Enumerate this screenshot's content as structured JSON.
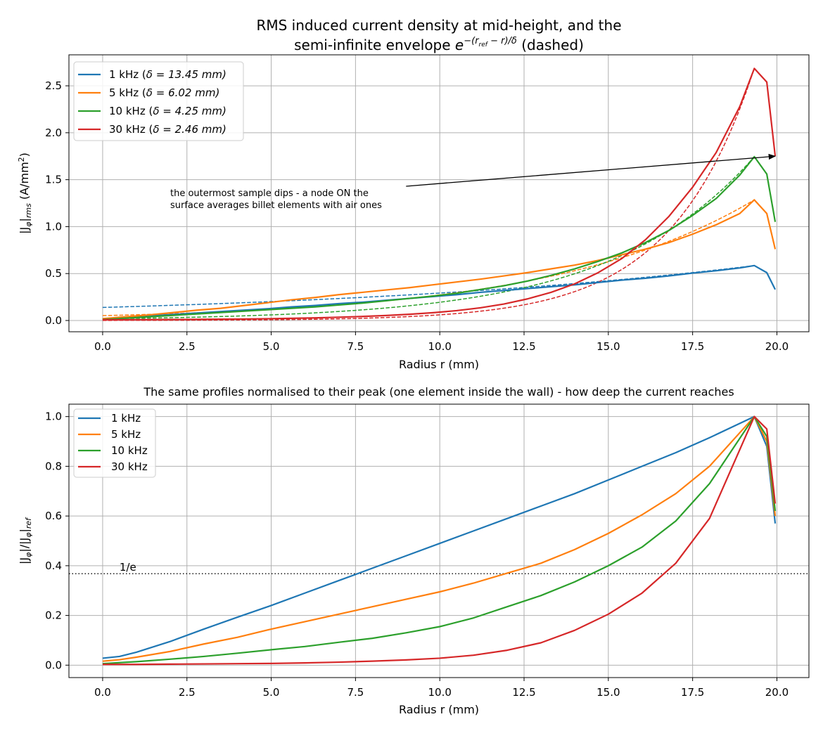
{
  "chart_data": [
    {
      "type": "line",
      "title_line1": "RMS induced current density at mid-height, and the",
      "title_line2_prefix": "semi-infinite envelope ",
      "title_line2_math_base": "e",
      "title_line2_math_exp": "−(r",
      "title_line2_math_exp_sub": "ref",
      "title_line2_math_exp_tail": " − r)/δ",
      "title_line2_suffix": " (dashed)",
      "xlabel": "Radius r (mm)",
      "ylabel_main": "|J",
      "ylabel_sub1": "φ",
      "ylabel_mid": "|",
      "ylabel_sub2": "rms",
      "ylabel_unit": " (A/mm",
      "ylabel_unit_sup": "2",
      "ylabel_close": ")",
      "xlim": [
        -1.0,
        20.95
      ],
      "ylim": [
        -0.12,
        2.83
      ],
      "xticks": [
        0.0,
        2.5,
        5.0,
        7.5,
        10.0,
        12.5,
        15.0,
        17.5,
        20.0
      ],
      "xtick_labels": [
        "0.0",
        "2.5",
        "5.0",
        "7.5",
        "10.0",
        "12.5",
        "15.0",
        "17.5",
        "20.0"
      ],
      "yticks": [
        0.0,
        0.5,
        1.0,
        1.5,
        2.0,
        2.5
      ],
      "ytick_labels": [
        "0.0",
        "0.5",
        "1.0",
        "1.5",
        "2.0",
        "2.5"
      ],
      "grid": true,
      "legend_position": "upper-left",
      "annotation": {
        "text_line1": "the outermost sample dips - a node ON the",
        "text_line2": "surface averages billet elements with air ones",
        "arrow_from": [
          9.0,
          1.43
        ],
        "arrow_to": [
          19.95,
          1.75
        ]
      },
      "series": [
        {
          "name": "1 kHz (δ = 13.45 mm)",
          "legend_prefix": "1 kHz (",
          "legend_delta_text": "δ = 13.45 mm)",
          "color": "#1f77b4",
          "x": [
            0,
            0.7,
            1.4,
            2.1,
            2.8,
            3.5,
            4.2,
            4.9,
            5.6,
            6.3,
            7.0,
            7.7,
            8.4,
            9.1,
            9.8,
            10.5,
            11.2,
            11.9,
            12.6,
            13.3,
            14.0,
            14.7,
            15.4,
            16.1,
            16.8,
            17.5,
            18.2,
            18.9,
            19.33,
            19.7,
            19.95
          ],
          "values": [
            0.016,
            0.03,
            0.05,
            0.065,
            0.08,
            0.095,
            0.11,
            0.125,
            0.145,
            0.16,
            0.18,
            0.195,
            0.215,
            0.235,
            0.255,
            0.275,
            0.3,
            0.32,
            0.34,
            0.36,
            0.38,
            0.405,
            0.43,
            0.45,
            0.475,
            0.505,
            0.53,
            0.56,
            0.585,
            0.51,
            0.33
          ],
          "envelope": {
            "type": "exp",
            "amplitude": 0.585,
            "r_ref": 19.33,
            "delta": 13.45,
            "x_start": 0,
            "x_end": 19.33
          }
        },
        {
          "name": "5 kHz (δ = 6.02 mm)",
          "legend_prefix": "5 kHz (",
          "legend_delta_text": "δ = 6.02 mm)",
          "color": "#ff7f0e",
          "x": [
            0,
            0.7,
            1.4,
            2.1,
            2.8,
            3.5,
            4.2,
            4.9,
            5.6,
            6.3,
            7.0,
            7.7,
            8.4,
            9.1,
            9.8,
            10.5,
            11.2,
            11.9,
            12.6,
            13.3,
            14.0,
            14.7,
            15.4,
            16.1,
            16.8,
            17.5,
            18.2,
            18.9,
            19.33,
            19.7,
            19.95
          ],
          "values": [
            0.02,
            0.04,
            0.06,
            0.085,
            0.11,
            0.13,
            0.16,
            0.19,
            0.22,
            0.245,
            0.275,
            0.3,
            0.325,
            0.35,
            0.38,
            0.41,
            0.44,
            0.475,
            0.51,
            0.55,
            0.59,
            0.64,
            0.7,
            0.76,
            0.83,
            0.92,
            1.02,
            1.14,
            1.285,
            1.14,
            0.76
          ],
          "envelope": {
            "type": "exp",
            "amplitude": 1.285,
            "r_ref": 19.33,
            "delta": 6.02,
            "x_start": 0,
            "x_end": 19.33
          }
        },
        {
          "name": "10 kHz (δ = 4.25 mm)",
          "legend_prefix": "10 kHz (",
          "legend_delta_text": "δ = 4.25 mm)",
          "color": "#2ca02c",
          "x": [
            0,
            0.7,
            1.4,
            2.1,
            2.8,
            3.5,
            4.2,
            4.9,
            5.6,
            6.3,
            7.0,
            7.7,
            8.4,
            9.1,
            9.8,
            10.5,
            11.2,
            11.9,
            12.6,
            13.3,
            14.0,
            14.7,
            15.4,
            16.1,
            16.8,
            17.5,
            18.2,
            18.9,
            19.33,
            19.7,
            19.95
          ],
          "values": [
            0.01,
            0.025,
            0.04,
            0.055,
            0.07,
            0.085,
            0.1,
            0.115,
            0.13,
            0.145,
            0.165,
            0.185,
            0.21,
            0.235,
            0.26,
            0.29,
            0.33,
            0.37,
            0.42,
            0.48,
            0.55,
            0.63,
            0.72,
            0.83,
            0.96,
            1.12,
            1.3,
            1.55,
            1.745,
            1.56,
            1.05
          ],
          "envelope": {
            "type": "exp",
            "amplitude": 1.745,
            "r_ref": 19.33,
            "delta": 4.25,
            "x_start": 0,
            "x_end": 19.33
          }
        },
        {
          "name": "30 kHz (δ = 2.46 mm)",
          "legend_prefix": "30 kHz (",
          "legend_delta_text": "δ = 2.46 mm)",
          "color": "#d62728",
          "x": [
            0,
            0.7,
            1.4,
            2.1,
            2.8,
            3.5,
            4.2,
            4.9,
            5.6,
            6.3,
            7.0,
            7.7,
            8.4,
            9.1,
            9.8,
            10.5,
            11.2,
            11.9,
            12.6,
            13.3,
            14.0,
            14.7,
            15.4,
            16.1,
            16.8,
            17.5,
            18.2,
            18.9,
            19.33,
            19.7,
            19.95
          ],
          "values": [
            0.008,
            0.008,
            0.009,
            0.01,
            0.012,
            0.014,
            0.016,
            0.019,
            0.023,
            0.028,
            0.035,
            0.043,
            0.053,
            0.066,
            0.083,
            0.105,
            0.135,
            0.175,
            0.23,
            0.3,
            0.39,
            0.51,
            0.66,
            0.86,
            1.11,
            1.42,
            1.79,
            2.28,
            2.685,
            2.54,
            1.75
          ],
          "envelope": {
            "type": "exp",
            "amplitude": 2.685,
            "r_ref": 19.33,
            "delta": 2.46,
            "x_start": 0,
            "x_end": 19.33
          }
        }
      ]
    },
    {
      "type": "line",
      "title": "The same profiles normalised to their peak (one element inside the wall) - how deep the current reaches",
      "xlabel": "Radius r (mm)",
      "ylabel_main": "|J",
      "ylabel_sub1": "φ",
      "ylabel_mid": "|/|J",
      "ylabel_sub2": "φ",
      "ylabel_tail": "|",
      "ylabel_sub3": "ref",
      "xlim": [
        -1.0,
        20.95
      ],
      "ylim": [
        -0.05,
        1.05
      ],
      "xticks": [
        0.0,
        2.5,
        5.0,
        7.5,
        10.0,
        12.5,
        15.0,
        17.5,
        20.0
      ],
      "xtick_labels": [
        "0.0",
        "2.5",
        "5.0",
        "7.5",
        "10.0",
        "12.5",
        "15.0",
        "17.5",
        "20.0"
      ],
      "yticks": [
        0.0,
        0.2,
        0.4,
        0.6,
        0.8,
        1.0
      ],
      "ytick_labels": [
        "0.0",
        "0.2",
        "0.4",
        "0.6",
        "0.8",
        "1.0"
      ],
      "grid": true,
      "legend_position": "upper-left",
      "reference_line": {
        "y": 0.368,
        "label": "1/e",
        "label_x": 0.5
      },
      "series": [
        {
          "name": "1 kHz",
          "color": "#1f77b4",
          "x": [
            0,
            0.5,
            1.0,
            2.0,
            3.0,
            4.0,
            5.0,
            6.0,
            7.0,
            8.0,
            9.0,
            10.0,
            11.0,
            12.0,
            13.0,
            14.0,
            15.0,
            16.0,
            17.0,
            18.0,
            19.33,
            19.7,
            19.95
          ],
          "values": [
            0.028,
            0.035,
            0.052,
            0.095,
            0.145,
            0.193,
            0.24,
            0.29,
            0.34,
            0.39,
            0.44,
            0.49,
            0.54,
            0.59,
            0.64,
            0.69,
            0.745,
            0.8,
            0.855,
            0.915,
            1.0,
            0.88,
            0.57
          ]
        },
        {
          "name": "5 kHz",
          "color": "#ff7f0e",
          "x": [
            0,
            0.5,
            1.0,
            2.0,
            3.0,
            4.0,
            5.0,
            6.0,
            7.0,
            8.0,
            9.0,
            10.0,
            11.0,
            12.0,
            13.0,
            14.0,
            15.0,
            16.0,
            17.0,
            18.0,
            19.33,
            19.7,
            19.95
          ],
          "values": [
            0.016,
            0.022,
            0.032,
            0.055,
            0.085,
            0.112,
            0.145,
            0.175,
            0.205,
            0.235,
            0.265,
            0.295,
            0.33,
            0.37,
            0.41,
            0.465,
            0.53,
            0.605,
            0.69,
            0.8,
            1.0,
            0.9,
            0.6
          ]
        },
        {
          "name": "10 kHz",
          "color": "#2ca02c",
          "x": [
            0,
            0.5,
            1.0,
            2.0,
            3.0,
            4.0,
            5.0,
            6.0,
            7.0,
            8.0,
            9.0,
            10.0,
            11.0,
            12.0,
            13.0,
            14.0,
            15.0,
            16.0,
            17.0,
            18.0,
            19.33,
            19.7,
            19.95
          ],
          "values": [
            0.006,
            0.01,
            0.014,
            0.024,
            0.035,
            0.048,
            0.062,
            0.075,
            0.092,
            0.108,
            0.13,
            0.155,
            0.19,
            0.235,
            0.28,
            0.335,
            0.4,
            0.475,
            0.58,
            0.73,
            1.0,
            0.92,
            0.62
          ]
        },
        {
          "name": "30 kHz",
          "color": "#d62728",
          "x": [
            0,
            0.5,
            1.0,
            2.0,
            3.0,
            4.0,
            5.0,
            6.0,
            7.0,
            8.0,
            9.0,
            10.0,
            11.0,
            12.0,
            13.0,
            14.0,
            15.0,
            16.0,
            17.0,
            18.0,
            19.33,
            19.7,
            19.95
          ],
          "values": [
            0.003,
            0.003,
            0.003,
            0.004,
            0.005,
            0.006,
            0.007,
            0.009,
            0.012,
            0.016,
            0.021,
            0.028,
            0.04,
            0.06,
            0.09,
            0.14,
            0.205,
            0.29,
            0.41,
            0.59,
            1.0,
            0.95,
            0.65
          ]
        }
      ]
    }
  ]
}
